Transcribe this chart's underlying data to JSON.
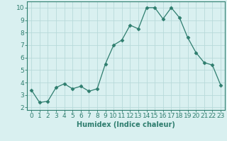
{
  "x": [
    0,
    1,
    2,
    3,
    4,
    5,
    6,
    7,
    8,
    9,
    10,
    11,
    12,
    13,
    14,
    15,
    16,
    17,
    18,
    19,
    20,
    21,
    22,
    23
  ],
  "y": [
    3.4,
    2.4,
    2.5,
    3.6,
    3.9,
    3.5,
    3.7,
    3.3,
    3.5,
    5.5,
    7.0,
    7.4,
    8.6,
    8.3,
    10.0,
    10.0,
    9.1,
    10.0,
    9.2,
    7.6,
    6.4,
    5.6,
    5.4,
    3.8
  ],
  "line_color": "#2e7d6e",
  "marker": "D",
  "marker_size": 2.5,
  "bg_color": "#d9f0f0",
  "grid_color": "#b8dada",
  "xlabel": "Humidex (Indice chaleur)",
  "xlabel_fontsize": 7,
  "ylabel_ticks": [
    2,
    3,
    4,
    5,
    6,
    7,
    8,
    9,
    10
  ],
  "xlim": [
    -0.5,
    23.5
  ],
  "ylim": [
    1.8,
    10.5
  ],
  "tick_fontsize": 6.5,
  "linewidth": 0.9
}
